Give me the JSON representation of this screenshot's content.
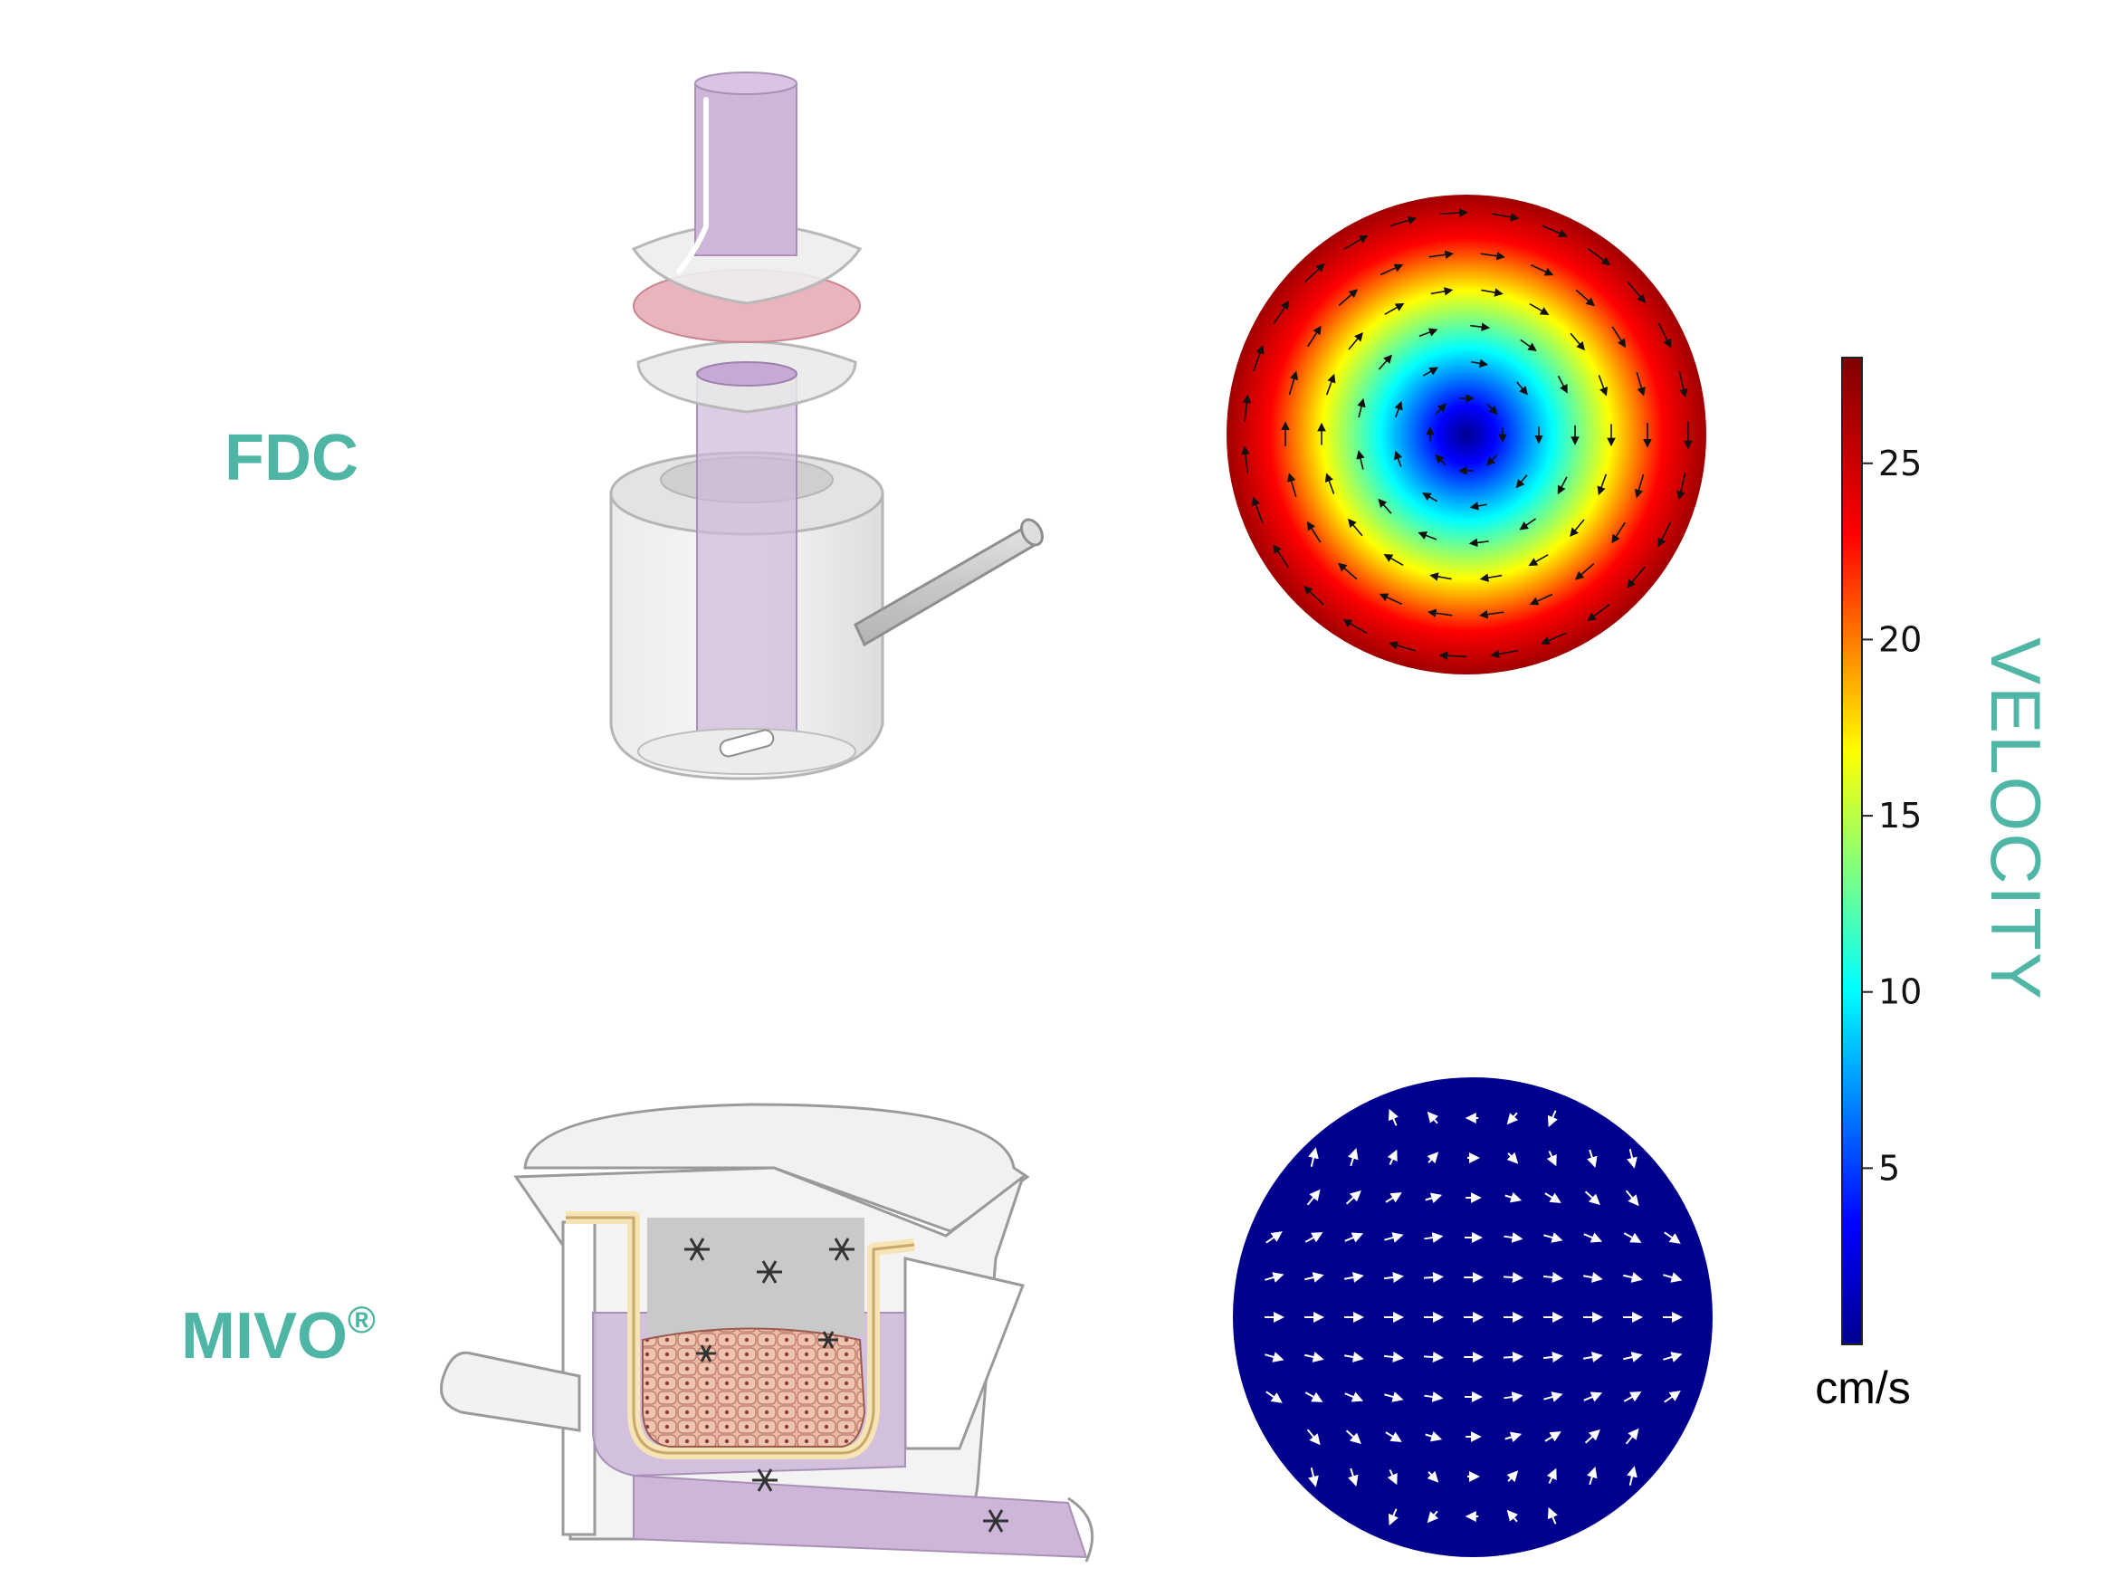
{
  "labels": {
    "top_device": "FDC",
    "bottom_device": "MIVO",
    "bottom_device_mark": "®"
  },
  "colorbar": {
    "title": "VELOCITY",
    "unit": "cm/s",
    "ticks": [
      "5",
      "10",
      "15",
      "20",
      "25"
    ],
    "tick_values": [
      5,
      10,
      15,
      20,
      25
    ],
    "range": [
      0,
      28
    ]
  },
  "flow_maps": {
    "top": {
      "field": "velocity",
      "pattern": "rotational (vortex)",
      "center_value": 0,
      "edge_value": 28
    },
    "bottom": {
      "field": "velocity",
      "pattern": "low, near-uniform",
      "value_level": 1
    }
  },
  "colors": {
    "label_teal": "#4fb5a5",
    "colormap": [
      "#00008f",
      "#0000ff",
      "#00ffff",
      "#ffff00",
      "#ff0000",
      "#800000"
    ],
    "fluid_purple": "#cdb6d8",
    "membrane_pink": "#e4a7b1",
    "insert_yellow": "#f6e4b4"
  }
}
